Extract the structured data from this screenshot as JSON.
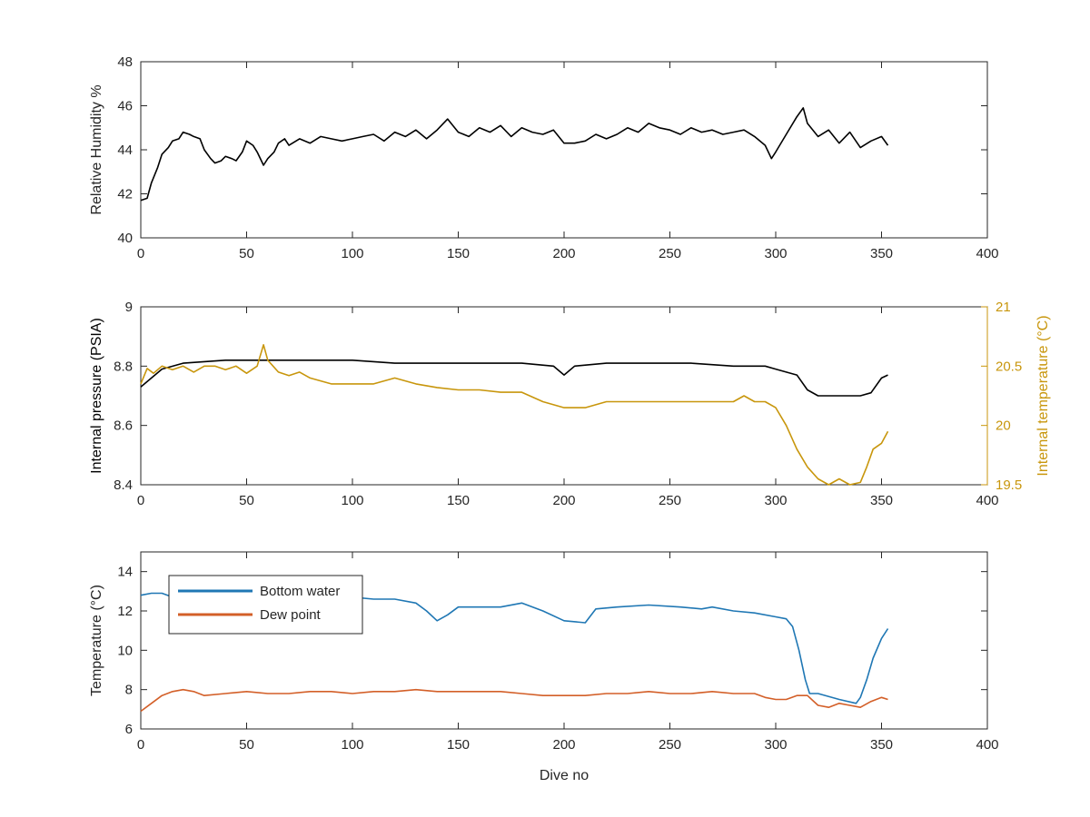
{
  "chart_data": [
    {
      "type": "line",
      "xlabel": "",
      "ylabel": "Relative Humidity %",
      "xlim": [
        0,
        400
      ],
      "ylim": [
        40,
        48
      ],
      "xticks": [
        0,
        50,
        100,
        150,
        200,
        250,
        300,
        350,
        400
      ],
      "yticks": [
        40,
        42,
        44,
        46,
        48
      ],
      "grid": false,
      "series": [
        {
          "color": "#000000",
          "points": [
            [
              0,
              41.7
            ],
            [
              3,
              41.8
            ],
            [
              5,
              42.5
            ],
            [
              8,
              43.2
            ],
            [
              10,
              43.8
            ],
            [
              13,
              44.1
            ],
            [
              15,
              44.4
            ],
            [
              18,
              44.5
            ],
            [
              20,
              44.8
            ],
            [
              23,
              44.7
            ],
            [
              25,
              44.6
            ],
            [
              28,
              44.5
            ],
            [
              30,
              44.0
            ],
            [
              33,
              43.6
            ],
            [
              35,
              43.4
            ],
            [
              38,
              43.5
            ],
            [
              40,
              43.7
            ],
            [
              43,
              43.6
            ],
            [
              45,
              43.5
            ],
            [
              48,
              43.9
            ],
            [
              50,
              44.4
            ],
            [
              53,
              44.2
            ],
            [
              55,
              43.9
            ],
            [
              58,
              43.3
            ],
            [
              60,
              43.6
            ],
            [
              63,
              43.9
            ],
            [
              65,
              44.3
            ],
            [
              68,
              44.5
            ],
            [
              70,
              44.2
            ],
            [
              75,
              44.5
            ],
            [
              80,
              44.3
            ],
            [
              85,
              44.6
            ],
            [
              90,
              44.5
            ],
            [
              95,
              44.4
            ],
            [
              100,
              44.5
            ],
            [
              105,
              44.6
            ],
            [
              110,
              44.7
            ],
            [
              115,
              44.4
            ],
            [
              120,
              44.8
            ],
            [
              125,
              44.6
            ],
            [
              130,
              44.9
            ],
            [
              135,
              44.5
            ],
            [
              140,
              44.9
            ],
            [
              145,
              45.4
            ],
            [
              150,
              44.8
            ],
            [
              155,
              44.6
            ],
            [
              160,
              45.0
            ],
            [
              165,
              44.8
            ],
            [
              170,
              45.1
            ],
            [
              175,
              44.6
            ],
            [
              180,
              45.0
            ],
            [
              185,
              44.8
            ],
            [
              190,
              44.7
            ],
            [
              195,
              44.9
            ],
            [
              200,
              44.3
            ],
            [
              205,
              44.3
            ],
            [
              210,
              44.4
            ],
            [
              215,
              44.7
            ],
            [
              220,
              44.5
            ],
            [
              225,
              44.7
            ],
            [
              230,
              45.0
            ],
            [
              235,
              44.8
            ],
            [
              240,
              45.2
            ],
            [
              245,
              45.0
            ],
            [
              250,
              44.9
            ],
            [
              255,
              44.7
            ],
            [
              260,
              45.0
            ],
            [
              265,
              44.8
            ],
            [
              270,
              44.9
            ],
            [
              275,
              44.7
            ],
            [
              280,
              44.8
            ],
            [
              285,
              44.9
            ],
            [
              290,
              44.6
            ],
            [
              295,
              44.2
            ],
            [
              298,
              43.6
            ],
            [
              300,
              43.9
            ],
            [
              305,
              44.7
            ],
            [
              310,
              45.5
            ],
            [
              313,
              45.9
            ],
            [
              315,
              45.2
            ],
            [
              320,
              44.6
            ],
            [
              325,
              44.9
            ],
            [
              330,
              44.3
            ],
            [
              335,
              44.8
            ],
            [
              340,
              44.1
            ],
            [
              345,
              44.4
            ],
            [
              350,
              44.6
            ],
            [
              353,
              44.2
            ]
          ]
        }
      ]
    },
    {
      "type": "line",
      "xlabel": "",
      "ylabel": "Internal pressure (PSIA)",
      "y2label": "Internal temperature (°C)",
      "xlim": [
        0,
        400
      ],
      "ylim": [
        8.4,
        9
      ],
      "y2lim": [
        19.5,
        21
      ],
      "xticks": [
        0,
        50,
        100,
        150,
        200,
        250,
        300,
        350,
        400
      ],
      "yticks": [
        8.4,
        8.6,
        8.8,
        9
      ],
      "y2ticks": [
        19.5,
        20,
        20.5,
        21
      ],
      "grid": false,
      "series": [
        {
          "axis": "left",
          "color": "#000000",
          "points": [
            [
              0,
              8.73
            ],
            [
              5,
              8.76
            ],
            [
              10,
              8.79
            ],
            [
              20,
              8.81
            ],
            [
              40,
              8.82
            ],
            [
              60,
              8.82
            ],
            [
              80,
              8.82
            ],
            [
              100,
              8.82
            ],
            [
              120,
              8.81
            ],
            [
              140,
              8.81
            ],
            [
              160,
              8.81
            ],
            [
              180,
              8.81
            ],
            [
              195,
              8.8
            ],
            [
              200,
              8.77
            ],
            [
              205,
              8.8
            ],
            [
              220,
              8.81
            ],
            [
              240,
              8.81
            ],
            [
              260,
              8.81
            ],
            [
              280,
              8.8
            ],
            [
              295,
              8.8
            ],
            [
              300,
              8.79
            ],
            [
              305,
              8.78
            ],
            [
              310,
              8.77
            ],
            [
              315,
              8.72
            ],
            [
              320,
              8.7
            ],
            [
              330,
              8.7
            ],
            [
              340,
              8.7
            ],
            [
              345,
              8.71
            ],
            [
              350,
              8.76
            ],
            [
              353,
              8.77
            ]
          ]
        },
        {
          "axis": "right",
          "color": "#c8960c",
          "points": [
            [
              0,
              20.35
            ],
            [
              3,
              20.48
            ],
            [
              6,
              20.44
            ],
            [
              10,
              20.5
            ],
            [
              15,
              20.47
            ],
            [
              20,
              20.5
            ],
            [
              25,
              20.45
            ],
            [
              30,
              20.5
            ],
            [
              35,
              20.5
            ],
            [
              40,
              20.47
            ],
            [
              45,
              20.5
            ],
            [
              50,
              20.44
            ],
            [
              55,
              20.5
            ],
            [
              58,
              20.68
            ],
            [
              60,
              20.55
            ],
            [
              65,
              20.45
            ],
            [
              70,
              20.42
            ],
            [
              75,
              20.45
            ],
            [
              80,
              20.4
            ],
            [
              90,
              20.35
            ],
            [
              100,
              20.35
            ],
            [
              110,
              20.35
            ],
            [
              120,
              20.4
            ],
            [
              130,
              20.35
            ],
            [
              140,
              20.32
            ],
            [
              150,
              20.3
            ],
            [
              160,
              20.3
            ],
            [
              170,
              20.28
            ],
            [
              180,
              20.28
            ],
            [
              190,
              20.2
            ],
            [
              200,
              20.15
            ],
            [
              210,
              20.15
            ],
            [
              220,
              20.2
            ],
            [
              230,
              20.2
            ],
            [
              240,
              20.2
            ],
            [
              250,
              20.2
            ],
            [
              260,
              20.2
            ],
            [
              270,
              20.2
            ],
            [
              280,
              20.2
            ],
            [
              285,
              20.25
            ],
            [
              290,
              20.2
            ],
            [
              295,
              20.2
            ],
            [
              300,
              20.15
            ],
            [
              305,
              20.0
            ],
            [
              310,
              19.8
            ],
            [
              315,
              19.65
            ],
            [
              320,
              19.55
            ],
            [
              325,
              19.5
            ],
            [
              330,
              19.55
            ],
            [
              335,
              19.5
            ],
            [
              340,
              19.52
            ],
            [
              343,
              19.65
            ],
            [
              346,
              19.8
            ],
            [
              350,
              19.85
            ],
            [
              353,
              19.95
            ]
          ]
        }
      ]
    },
    {
      "type": "line",
      "xlabel": "Dive no",
      "ylabel": "Temperature (°C)",
      "xlim": [
        0,
        400
      ],
      "ylim": [
        6,
        15
      ],
      "xticks": [
        0,
        50,
        100,
        150,
        200,
        250,
        300,
        350,
        400
      ],
      "yticks": [
        6,
        8,
        10,
        12,
        14
      ],
      "grid": false,
      "legend": "top-left",
      "series": [
        {
          "name": "Bottom water",
          "color": "#1f77b4",
          "points": [
            [
              0,
              12.8
            ],
            [
              5,
              12.9
            ],
            [
              10,
              12.9
            ],
            [
              15,
              12.7
            ],
            [
              30,
              12.8
            ],
            [
              50,
              12.8
            ],
            [
              70,
              12.8
            ],
            [
              90,
              12.7
            ],
            [
              100,
              12.7
            ],
            [
              110,
              12.6
            ],
            [
              120,
              12.6
            ],
            [
              130,
              12.4
            ],
            [
              135,
              12.0
            ],
            [
              140,
              11.5
            ],
            [
              145,
              11.8
            ],
            [
              150,
              12.2
            ],
            [
              170,
              12.2
            ],
            [
              180,
              12.4
            ],
            [
              190,
              12.0
            ],
            [
              200,
              11.5
            ],
            [
              210,
              11.4
            ],
            [
              215,
              12.1
            ],
            [
              225,
              12.2
            ],
            [
              240,
              12.3
            ],
            [
              255,
              12.2
            ],
            [
              265,
              12.1
            ],
            [
              270,
              12.2
            ],
            [
              280,
              12.0
            ],
            [
              290,
              11.9
            ],
            [
              300,
              11.7
            ],
            [
              305,
              11.6
            ],
            [
              308,
              11.2
            ],
            [
              311,
              10.0
            ],
            [
              314,
              8.5
            ],
            [
              316,
              7.8
            ],
            [
              320,
              7.8
            ],
            [
              330,
              7.5
            ],
            [
              338,
              7.3
            ],
            [
              340,
              7.6
            ],
            [
              343,
              8.5
            ],
            [
              346,
              9.6
            ],
            [
              350,
              10.6
            ],
            [
              353,
              11.1
            ]
          ]
        },
        {
          "name": "Dew point",
          "color": "#d35f28",
          "points": [
            [
              0,
              6.9
            ],
            [
              5,
              7.3
            ],
            [
              10,
              7.7
            ],
            [
              15,
              7.9
            ],
            [
              20,
              8.0
            ],
            [
              25,
              7.9
            ],
            [
              30,
              7.7
            ],
            [
              40,
              7.8
            ],
            [
              50,
              7.9
            ],
            [
              60,
              7.8
            ],
            [
              70,
              7.8
            ],
            [
              80,
              7.9
            ],
            [
              90,
              7.9
            ],
            [
              100,
              7.8
            ],
            [
              110,
              7.9
            ],
            [
              120,
              7.9
            ],
            [
              130,
              8.0
            ],
            [
              140,
              7.9
            ],
            [
              150,
              7.9
            ],
            [
              160,
              7.9
            ],
            [
              170,
              7.9
            ],
            [
              180,
              7.8
            ],
            [
              190,
              7.7
            ],
            [
              200,
              7.7
            ],
            [
              210,
              7.7
            ],
            [
              220,
              7.8
            ],
            [
              230,
              7.8
            ],
            [
              240,
              7.9
            ],
            [
              250,
              7.8
            ],
            [
              260,
              7.8
            ],
            [
              270,
              7.9
            ],
            [
              280,
              7.8
            ],
            [
              290,
              7.8
            ],
            [
              295,
              7.6
            ],
            [
              300,
              7.5
            ],
            [
              305,
              7.5
            ],
            [
              310,
              7.7
            ],
            [
              315,
              7.7
            ],
            [
              320,
              7.2
            ],
            [
              325,
              7.1
            ],
            [
              330,
              7.3
            ],
            [
              335,
              7.2
            ],
            [
              340,
              7.1
            ],
            [
              345,
              7.4
            ],
            [
              350,
              7.6
            ],
            [
              353,
              7.5
            ]
          ]
        }
      ]
    }
  ]
}
